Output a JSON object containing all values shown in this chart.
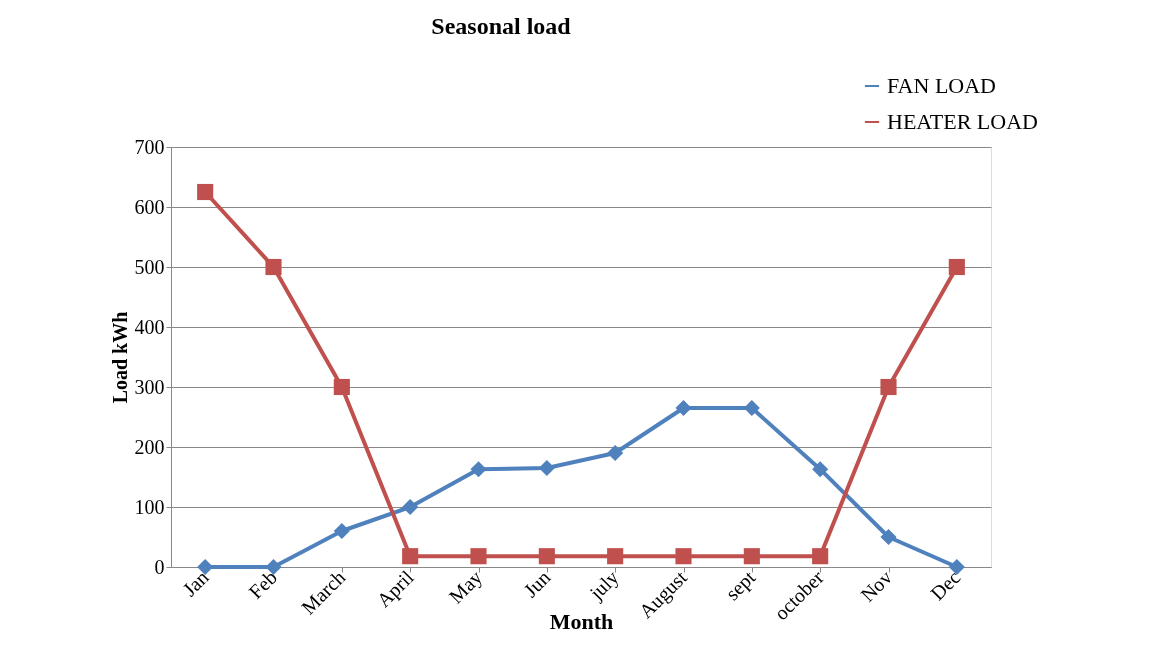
{
  "chart_data": {
    "type": "line",
    "title": "Seasonal load",
    "xlabel": "Month",
    "ylabel": "Load kWh",
    "categories": [
      "Jan",
      "Feb",
      "March",
      "April",
      "May",
      "Jun",
      "july",
      "August",
      "sept",
      "october",
      "Nov",
      "Dec"
    ],
    "series": [
      {
        "name": "FAN LOAD",
        "color": "#4f81bd",
        "marker": "diamond",
        "values": [
          0,
          0,
          60,
          100,
          163,
          165,
          190,
          265,
          265,
          163,
          50,
          0
        ]
      },
      {
        "name": "HEATER LOAD",
        "color": "#c0504d",
        "marker": "square",
        "values": [
          625,
          500,
          300,
          18,
          18,
          18,
          18,
          18,
          18,
          18,
          300,
          500
        ]
      }
    ],
    "ylim": [
      0,
      700
    ],
    "yticks": [
      0,
      100,
      200,
      300,
      400,
      500,
      600,
      700
    ],
    "grid": "y",
    "legend": "top right",
    "line_style": "solid"
  }
}
